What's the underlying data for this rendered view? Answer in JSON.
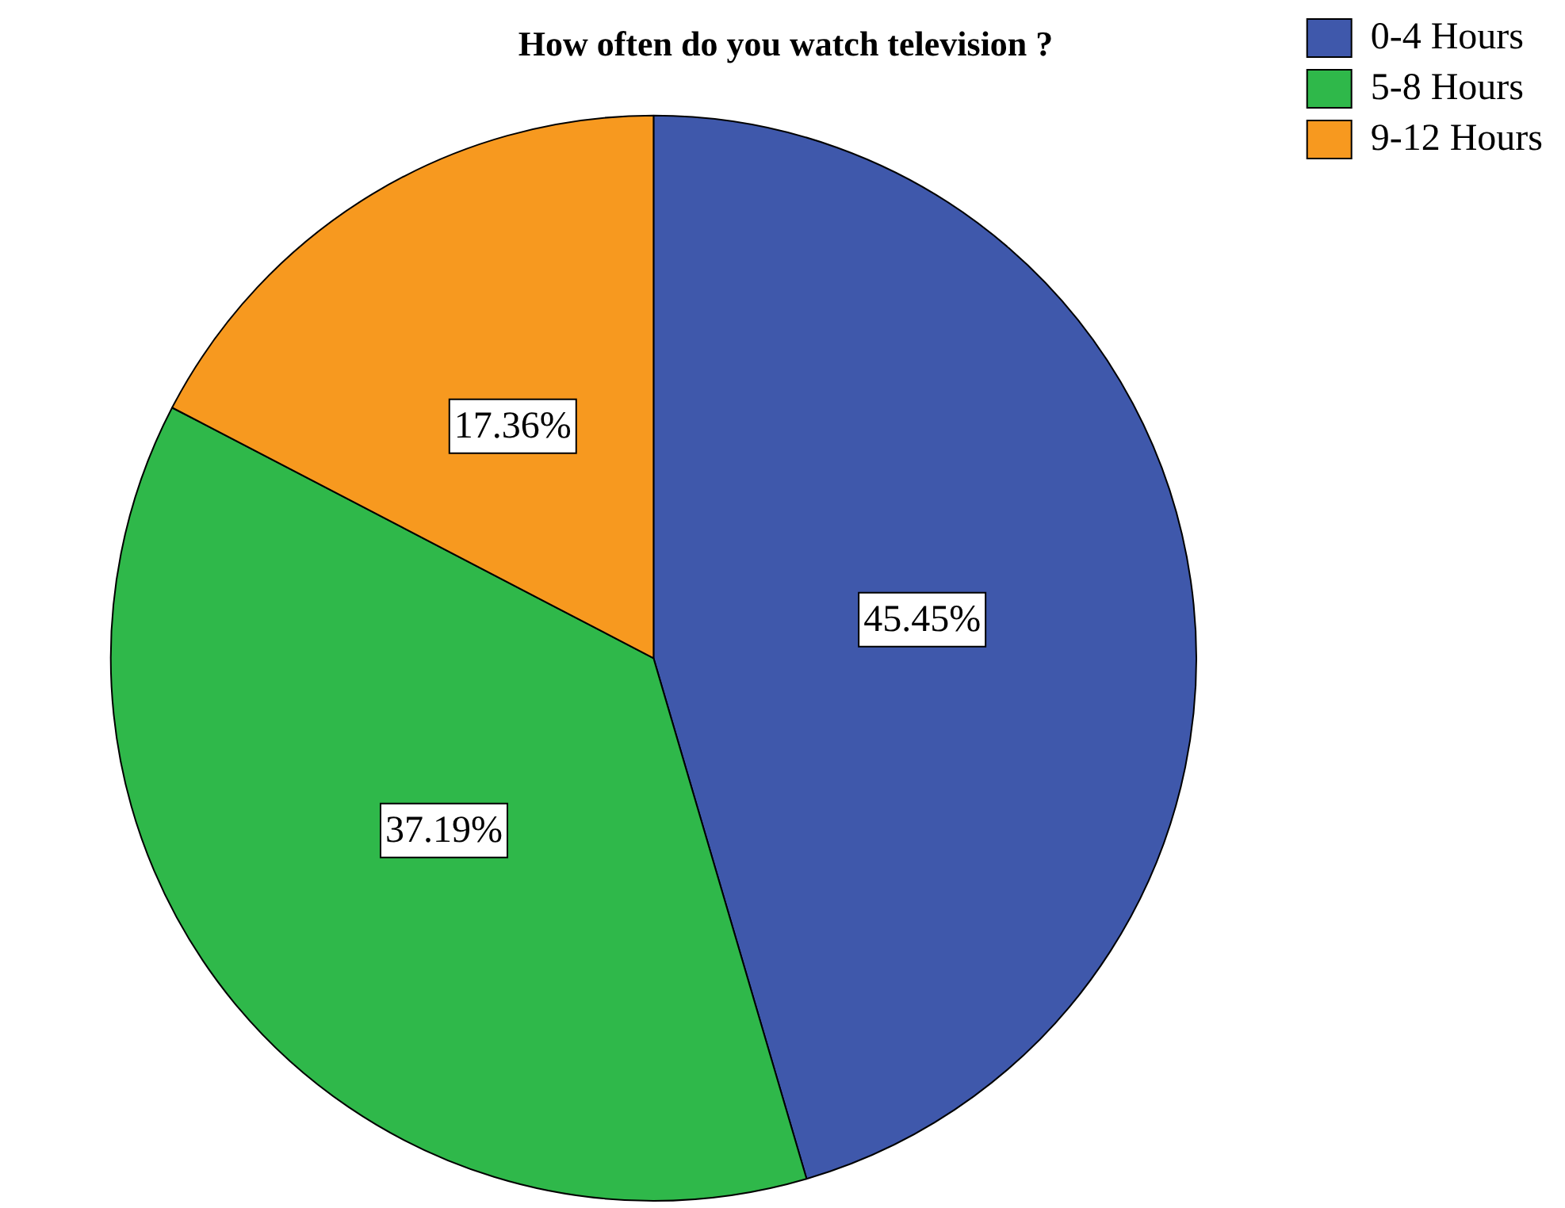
{
  "chart_data": {
    "type": "pie",
    "title": "How often do you watch television ?",
    "categories": [
      "0-4 Hours",
      "5-8 Hours",
      "9-12 Hours"
    ],
    "values": [
      45.45,
      37.19,
      17.36
    ],
    "colors": [
      "#3f58ab",
      "#2fb84a",
      "#f7991f"
    ],
    "value_labels": [
      "45.45%",
      "37.19%",
      "17.36%"
    ],
    "legend": "top right"
  }
}
